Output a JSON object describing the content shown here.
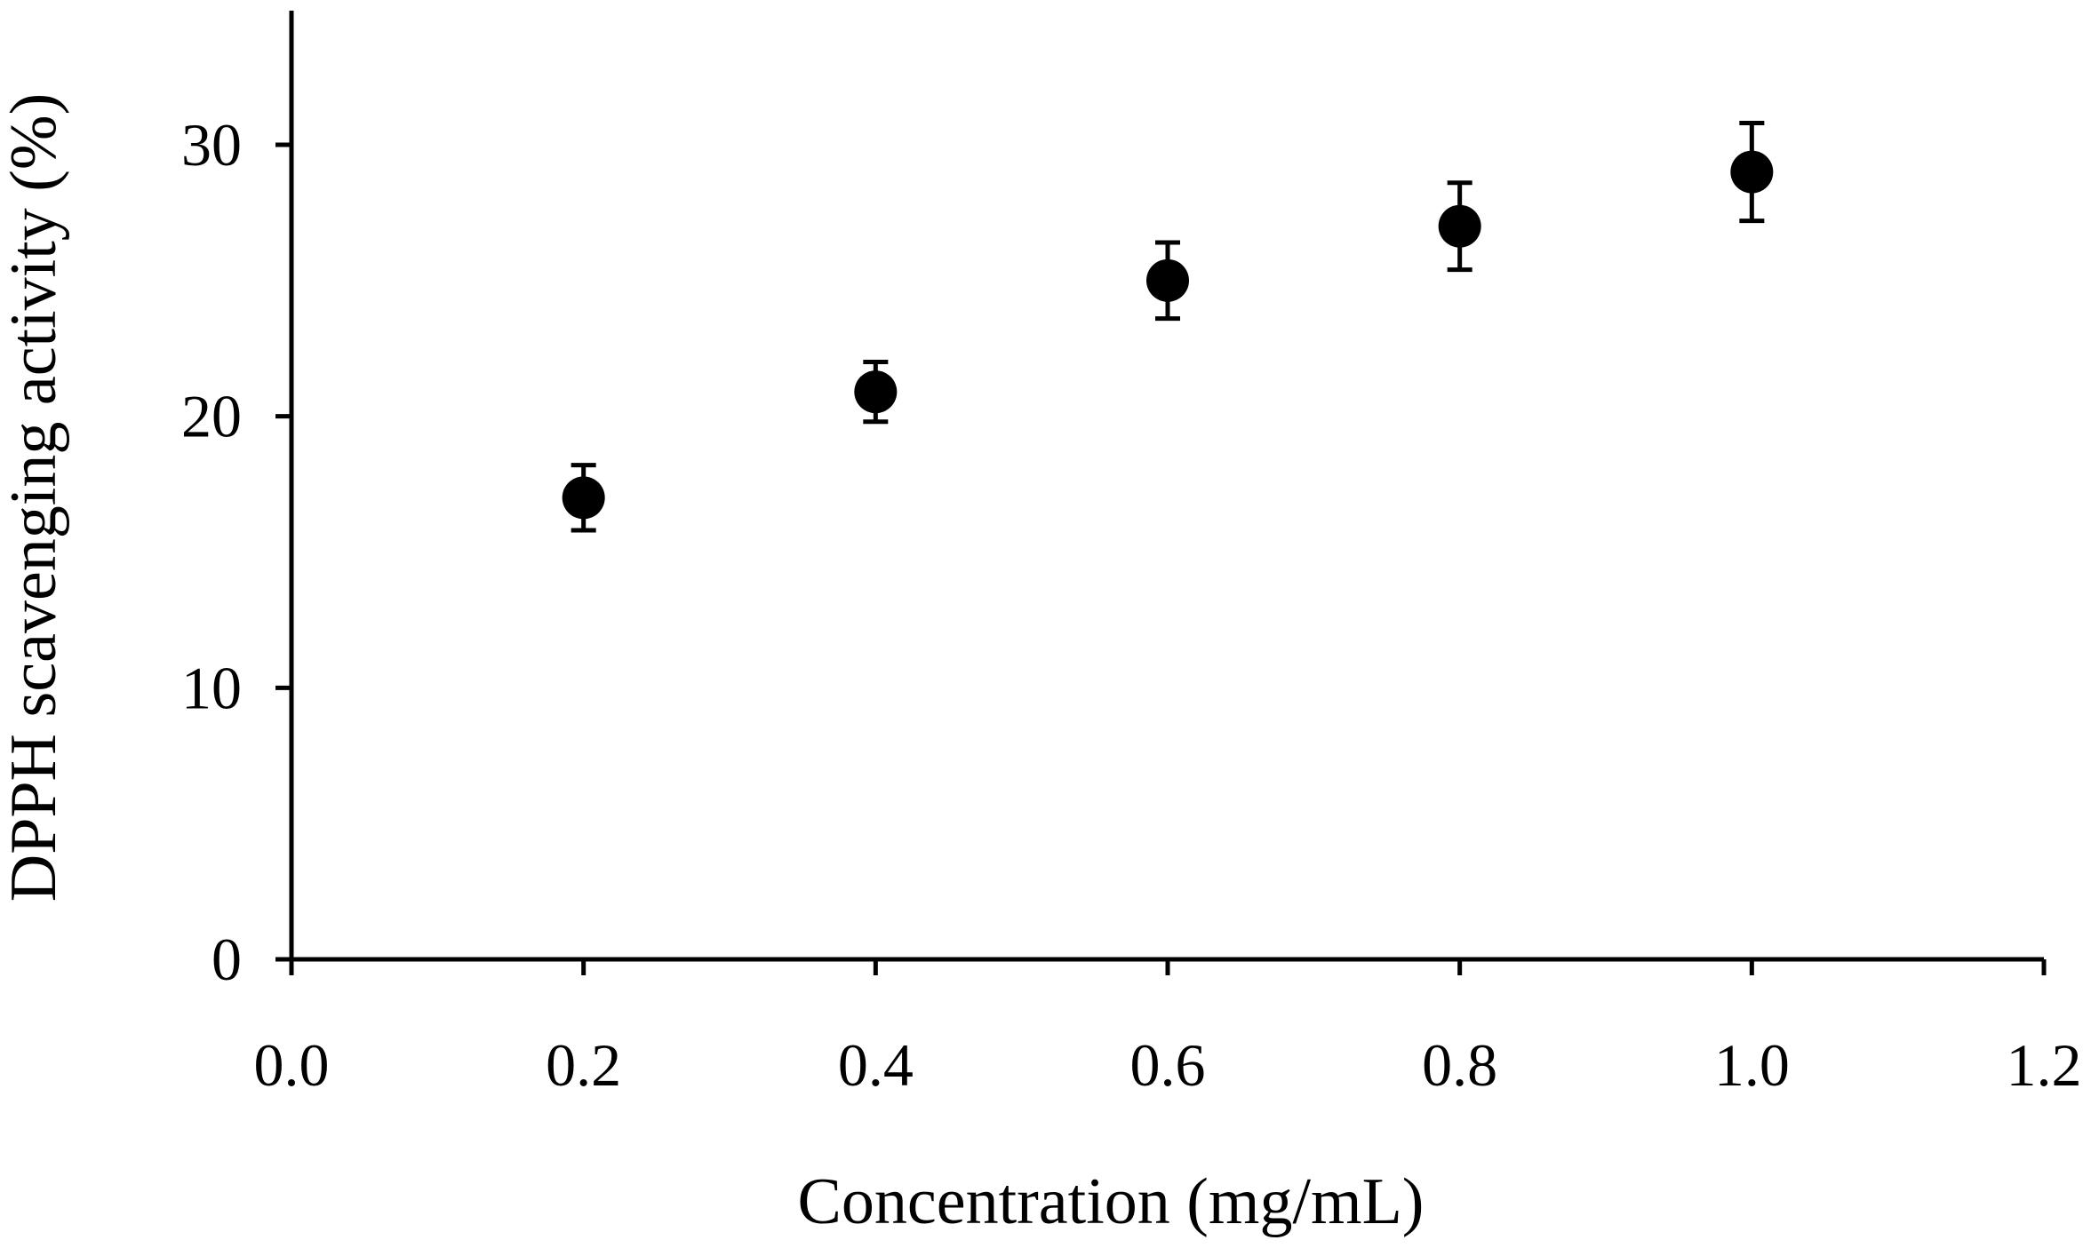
{
  "chart_data": {
    "type": "scatter",
    "title": "",
    "xlabel": "Concentration (mg/mL)",
    "ylabel": "DPPH scavenging activity (%)",
    "xlim": [
      0.0,
      1.2
    ],
    "ylim": [
      0,
      35
    ],
    "grid": false,
    "legend": "none",
    "x_ticks": [
      0.0,
      0.2,
      0.4,
      0.6,
      0.8,
      1.0,
      1.2
    ],
    "x_tick_labels": [
      "0.0",
      "0.2",
      "0.4",
      "0.6",
      "0.8",
      "1.0",
      "1.2"
    ],
    "y_ticks": [
      0,
      10,
      20,
      30
    ],
    "y_tick_labels": [
      "0",
      "10",
      "20",
      "30"
    ],
    "series": [
      {
        "name": "DPPH scavenging activity",
        "x": [
          0.2,
          0.4,
          0.6,
          0.8,
          1.0
        ],
        "y": [
          17.0,
          20.9,
          25.0,
          27.0,
          29.0
        ],
        "error": [
          1.2,
          1.1,
          1.4,
          1.6,
          1.8
        ]
      }
    ],
    "colors": {
      "marker": "#000000",
      "axis": "#000000"
    }
  }
}
